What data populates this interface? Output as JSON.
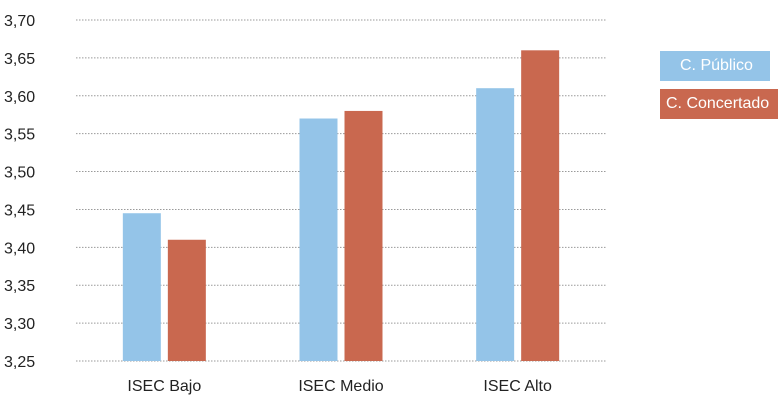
{
  "chart_data": {
    "type": "bar",
    "title": "",
    "xlabel": "",
    "ylabel": "",
    "categories": [
      "ISEC Bajo",
      "ISEC Medio",
      "ISEC Alto"
    ],
    "series": [
      {
        "name": "C. Público",
        "color": "#94C4E8",
        "values": [
          3.445,
          3.57,
          3.61
        ]
      },
      {
        "name": "C. Concertado",
        "color": "#C9684F",
        "values": [
          3.41,
          3.58,
          3.66
        ]
      }
    ],
    "ylim": [
      3.25,
      3.7
    ],
    "yticks": [
      "3,25",
      "3,30",
      "3,35",
      "3,40",
      "3,45",
      "3,50",
      "3,55",
      "3,60",
      "3,65",
      "3,70"
    ],
    "grid": true,
    "legend": "right"
  }
}
